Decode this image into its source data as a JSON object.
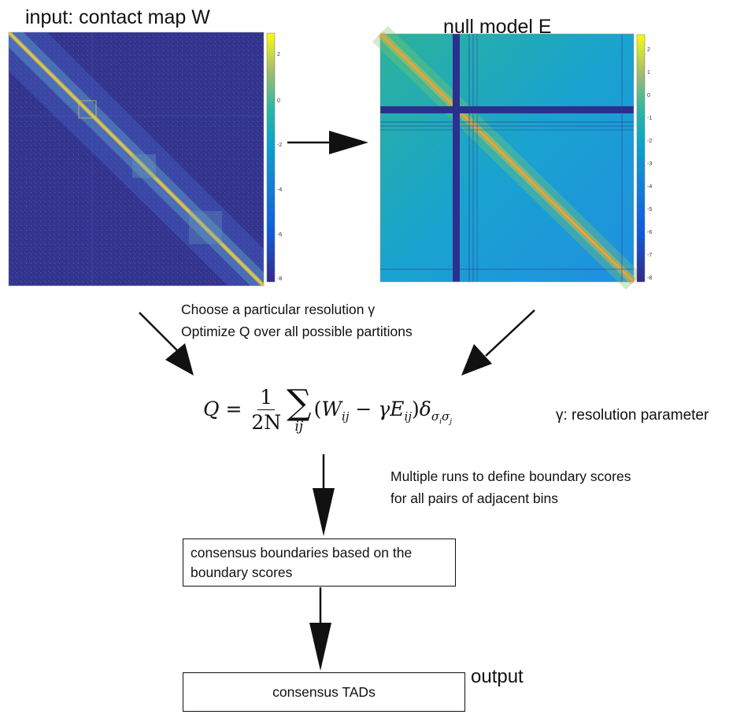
{
  "titles": {
    "input_map": "input: contact map W",
    "null_model": "null model E"
  },
  "colorbar_left": {
    "ticks": [
      "2",
      "0",
      "-2",
      "-4",
      "-6",
      "-8"
    ]
  },
  "colorbar_right": {
    "ticks": [
      "2",
      "1",
      "0",
      "-1",
      "-2",
      "-3",
      "-4",
      "-5",
      "-6",
      "-7",
      "-8"
    ]
  },
  "steps": {
    "choose": "Choose a particular resolution γ",
    "optimize": "Optimize Q over all possible partitions",
    "multiple_runs_1": "Multiple runs to define boundary scores",
    "multiple_runs_2": "for all pairs of adjacent bins"
  },
  "formula": {
    "lhs": "Q",
    "eq": "=",
    "frac_num": "1",
    "frac_den": "2N",
    "sum_sub": "ij",
    "body_open": "(",
    "w": "W",
    "w_sub": "ij",
    "minus": " − ",
    "gamma": "γ",
    "e": "E",
    "e_sub": "ij",
    "body_close": ")",
    "delta": "δ",
    "delta_sub": "σ",
    "delta_sub_i": "i",
    "delta_sub_2": "σ",
    "delta_sub_j": "j",
    "param_label": "γ: resolution parameter"
  },
  "boxes": {
    "consensus_boundaries": "consensus boundaries based on the boundary scores",
    "consensus_tads": "consensus TADs",
    "output_label": "output"
  },
  "colors": {
    "heatmap_low": "#352a87",
    "heatmap_mid": "#21b3a4",
    "heatmap_high": "#f9d22b"
  }
}
